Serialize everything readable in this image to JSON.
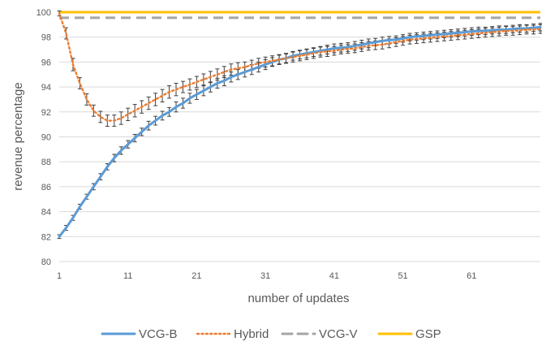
{
  "chart_data": {
    "type": "line",
    "title": "",
    "xlabel": "number of updates",
    "ylabel": "revenue percentage",
    "xlim": [
      1,
      71
    ],
    "ylim": [
      80,
      100
    ],
    "x_ticks": [
      "1",
      "11",
      "21",
      "31",
      "41",
      "51",
      "61"
    ],
    "x_tick_values": [
      1,
      11,
      21,
      31,
      41,
      51,
      61
    ],
    "y_ticks": [
      "80",
      "82",
      "84",
      "86",
      "88",
      "90",
      "92",
      "94",
      "96",
      "98",
      "100"
    ],
    "y_tick_values": [
      80,
      82,
      84,
      86,
      88,
      90,
      92,
      94,
      96,
      98,
      100
    ],
    "grid": "horizontal",
    "legend_position": "bottom",
    "x": [
      1,
      2,
      3,
      4,
      5,
      6,
      7,
      8,
      9,
      10,
      11,
      12,
      13,
      14,
      15,
      16,
      17,
      18,
      19,
      20,
      21,
      22,
      23,
      24,
      25,
      26,
      27,
      28,
      29,
      30,
      31,
      32,
      33,
      34,
      35,
      36,
      37,
      38,
      39,
      40,
      41,
      42,
      43,
      44,
      45,
      46,
      47,
      48,
      49,
      50,
      51,
      52,
      53,
      54,
      55,
      56,
      57,
      58,
      59,
      60,
      61,
      62,
      63,
      64,
      65,
      66,
      67,
      68,
      69,
      70,
      71
    ],
    "series": [
      {
        "name": "VCG-B",
        "color": "#5B9BD5",
        "style": "solid",
        "values": [
          82.0,
          82.7,
          83.5,
          84.4,
          85.2,
          86.0,
          86.8,
          87.6,
          88.3,
          88.9,
          89.4,
          89.9,
          90.4,
          90.9,
          91.3,
          91.7,
          92.0,
          92.4,
          92.7,
          93.1,
          93.4,
          93.7,
          94.0,
          94.3,
          94.5,
          94.8,
          95.0,
          95.2,
          95.4,
          95.6,
          95.8,
          96.0,
          96.2,
          96.3,
          96.5,
          96.6,
          96.7,
          96.8,
          96.9,
          97.0,
          97.1,
          97.15,
          97.2,
          97.3,
          97.4,
          97.5,
          97.6,
          97.7,
          97.75,
          97.8,
          97.9,
          98.0,
          98.05,
          98.1,
          98.15,
          98.2,
          98.25,
          98.3,
          98.35,
          98.4,
          98.45,
          98.5,
          98.5,
          98.55,
          98.6,
          98.6,
          98.65,
          98.7,
          98.7,
          98.75,
          98.8
        ],
        "errors": [
          0.15,
          0.2,
          0.2,
          0.2,
          0.2,
          0.25,
          0.25,
          0.25,
          0.3,
          0.3,
          0.3,
          0.3,
          0.3,
          0.35,
          0.35,
          0.35,
          0.35,
          0.4,
          0.4,
          0.4,
          0.4,
          0.4,
          0.4,
          0.4,
          0.4,
          0.4,
          0.4,
          0.4,
          0.4,
          0.4,
          0.4,
          0.35,
          0.35,
          0.35,
          0.35,
          0.35,
          0.35,
          0.35,
          0.35,
          0.35,
          0.35,
          0.35,
          0.35,
          0.35,
          0.35,
          0.35,
          0.3,
          0.3,
          0.3,
          0.3,
          0.3,
          0.3,
          0.3,
          0.3,
          0.3,
          0.3,
          0.3,
          0.3,
          0.3,
          0.3,
          0.3,
          0.3,
          0.3,
          0.3,
          0.3,
          0.3,
          0.3,
          0.3,
          0.3,
          0.3,
          0.3
        ]
      },
      {
        "name": "Hybrid",
        "color": "#ED7D31",
        "style": "dotted",
        "values": [
          99.9,
          98.3,
          95.8,
          94.3,
          93.0,
          92.1,
          91.6,
          91.3,
          91.3,
          91.5,
          91.8,
          92.1,
          92.4,
          92.7,
          93.0,
          93.3,
          93.6,
          93.8,
          94.0,
          94.2,
          94.4,
          94.6,
          94.8,
          95.0,
          95.2,
          95.4,
          95.5,
          95.6,
          95.75,
          95.9,
          96.0,
          96.1,
          96.2,
          96.3,
          96.4,
          96.5,
          96.6,
          96.7,
          96.8,
          96.85,
          96.9,
          97.0,
          97.05,
          97.1,
          97.2,
          97.3,
          97.35,
          97.4,
          97.5,
          97.6,
          97.7,
          97.8,
          97.85,
          97.9,
          97.95,
          98.0,
          98.05,
          98.1,
          98.15,
          98.2,
          98.25,
          98.3,
          98.35,
          98.4,
          98.45,
          98.5,
          98.5,
          98.55,
          98.6,
          98.6,
          98.65
        ],
        "errors": [
          0.2,
          0.45,
          0.5,
          0.45,
          0.45,
          0.45,
          0.45,
          0.45,
          0.45,
          0.5,
          0.5,
          0.5,
          0.5,
          0.5,
          0.5,
          0.5,
          0.5,
          0.5,
          0.45,
          0.45,
          0.45,
          0.45,
          0.45,
          0.45,
          0.45,
          0.45,
          0.45,
          0.4,
          0.4,
          0.4,
          0.4,
          0.4,
          0.4,
          0.4,
          0.4,
          0.4,
          0.4,
          0.4,
          0.4,
          0.4,
          0.35,
          0.35,
          0.35,
          0.35,
          0.35,
          0.35,
          0.35,
          0.35,
          0.35,
          0.35,
          0.35,
          0.35,
          0.35,
          0.35,
          0.35,
          0.35,
          0.35,
          0.35,
          0.35,
          0.35,
          0.35,
          0.35,
          0.35,
          0.35,
          0.35,
          0.35,
          0.35,
          0.35,
          0.35,
          0.35,
          0.35
        ]
      },
      {
        "name": "VCG-V",
        "color": "#A5A5A5",
        "style": "dashed",
        "constant": 99.55
      },
      {
        "name": "GSP",
        "color": "#FFC000",
        "style": "solid",
        "constant": 100
      }
    ]
  }
}
